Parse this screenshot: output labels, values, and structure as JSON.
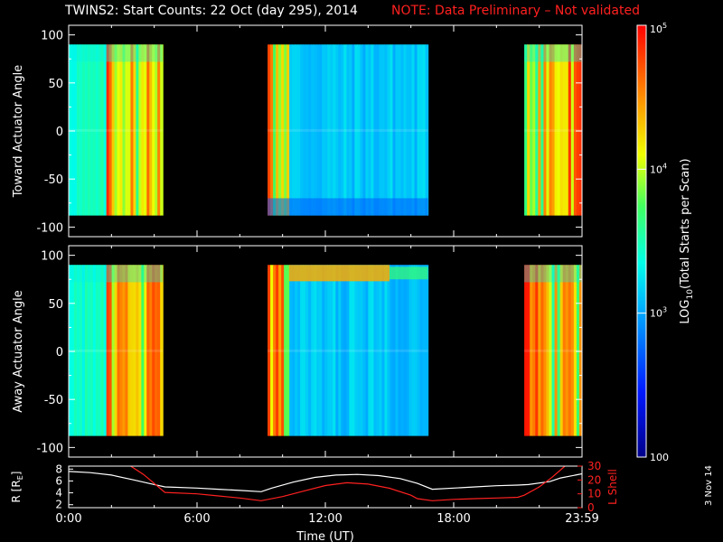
{
  "header": {
    "title": "TWINS2: Start Counts: 22 Oct (day 295), 2014",
    "note": "NOTE: Data Preliminary – Not validated",
    "stamp": "3 Nov 14"
  },
  "colors": {
    "background": "#000000",
    "axes": "#ffffff",
    "note": "#ff2020",
    "lshell": "#ff2020",
    "radius": "#ffffff"
  },
  "chart_data": [
    {
      "type": "heatmap",
      "panel": "toward",
      "ylabel": "Toward Actuator Angle",
      "ylim": [
        -110,
        110
      ],
      "yticks": [
        "100",
        "50",
        "0",
        "-50",
        "-100"
      ],
      "xlim": [
        0,
        24
      ],
      "coverage_hours": [
        [
          0.0,
          4.4
        ],
        [
          9.3,
          16.8
        ],
        [
          21.3,
          24.0
        ]
      ],
      "angle_range": [
        -88,
        90
      ],
      "colorscale": "log"
    },
    {
      "type": "heatmap",
      "panel": "away",
      "ylabel": "Away Actuator Angle",
      "ylim": [
        -110,
        110
      ],
      "yticks": [
        "100",
        "50",
        "0",
        "-50",
        "-100"
      ],
      "xlim": [
        0,
        24
      ],
      "coverage_hours": [
        [
          0.0,
          4.4
        ],
        [
          9.3,
          16.8
        ],
        [
          21.3,
          24.0
        ]
      ],
      "angle_range": [
        -88,
        90
      ],
      "colorscale": "log"
    },
    {
      "type": "line",
      "panel": "orbit",
      "ylabel_left": "R [R",
      "ylabel_left_sub": "E",
      "ylabel_left_end": "]",
      "ylabel_right": "L Shell",
      "yticks_left": [
        "8",
        "6",
        "4",
        "2"
      ],
      "yticks_right": [
        "30",
        "20",
        "10",
        "0"
      ],
      "ylim_left": [
        1.5,
        8.5
      ],
      "ylim_right": [
        0,
        30
      ],
      "xlabel": "Time (UT)",
      "xticks": [
        "0:00",
        "6:00",
        "12:00",
        "18:00",
        "23:59"
      ],
      "xlim": [
        0,
        24
      ],
      "series": [
        {
          "axis": "left",
          "x": [
            0,
            1,
            2,
            3,
            4,
            4.5,
            6,
            7,
            8,
            9,
            9.5,
            10.5,
            11.5,
            12.5,
            13.5,
            14.5,
            15.5,
            16.3,
            17,
            18,
            19,
            20,
            21,
            21.5,
            22.5,
            23,
            24
          ],
          "y": [
            7.6,
            7.4,
            7.0,
            6.2,
            5.4,
            5.0,
            4.8,
            4.6,
            4.4,
            4.2,
            4.8,
            5.8,
            6.6,
            7.0,
            7.1,
            6.9,
            6.4,
            5.6,
            4.6,
            4.8,
            5.0,
            5.2,
            5.3,
            5.4,
            5.9,
            6.5,
            7.2
          ]
        },
        {
          "axis": "right",
          "x": [
            2.9,
            3.5,
            4.5,
            6,
            7,
            8,
            9,
            10,
            11,
            12,
            13,
            14,
            15,
            16,
            16.3,
            17,
            18,
            19,
            20,
            21,
            21.3,
            22,
            22.6,
            23.2
          ],
          "y": [
            30,
            24,
            11,
            10,
            8.5,
            7,
            5,
            8,
            12,
            16,
            18,
            17,
            14,
            9,
            6.5,
            5,
            6,
            6.5,
            7,
            7.5,
            9,
            15,
            22,
            30
          ]
        }
      ]
    }
  ],
  "colorbar": {
    "label_pre": "LOG",
    "label_sub": "10",
    "label_post": "(Total Starts per Scan)",
    "ticks": [
      {
        "base": "10",
        "exp": "5",
        "value": 5
      },
      {
        "base": "10",
        "exp": "4",
        "value": 4
      },
      {
        "base": "10",
        "exp": "3",
        "value": 3
      },
      {
        "base": "100",
        "exp": "",
        "value": 2
      }
    ],
    "range": [
      2,
      5
    ]
  }
}
